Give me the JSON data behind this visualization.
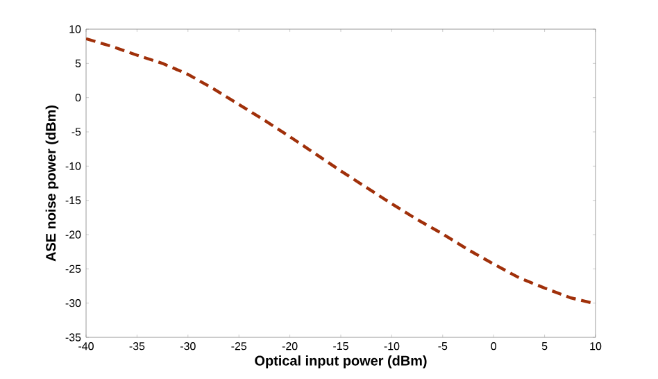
{
  "chart_data": {
    "type": "line",
    "xlabel": "Optical input power (dBm)",
    "ylabel": "ASE noise power (dBm)",
    "x": [
      -40,
      -37.5,
      -35,
      -32.5,
      -30,
      -27.5,
      -25,
      -22.5,
      -20,
      -17.5,
      -15,
      -12.5,
      -10,
      -7.5,
      -5,
      -2.5,
      0,
      2.5,
      5,
      7.5,
      10
    ],
    "series": [
      {
        "color": "#a0300a",
        "values": [
          8.6,
          7.5,
          6.2,
          5.0,
          3.4,
          1.3,
          -1.0,
          -3.3,
          -5.7,
          -8.2,
          -10.7,
          -13.1,
          -15.5,
          -17.8,
          -19.9,
          -22.2,
          -24.3,
          -26.3,
          -27.8,
          -29.2,
          -30.1
        ]
      }
    ],
    "xlim": [
      -40,
      10
    ],
    "ylim": [
      -35,
      10
    ],
    "xticks": [
      -40,
      -35,
      -30,
      -25,
      -20,
      -15,
      -10,
      -5,
      0,
      5,
      10
    ],
    "yticks": [
      -35,
      -30,
      -25,
      -20,
      -15,
      -10,
      -5,
      0,
      5,
      10
    ],
    "grid": false,
    "marker": "none",
    "line_style": "dashed"
  }
}
